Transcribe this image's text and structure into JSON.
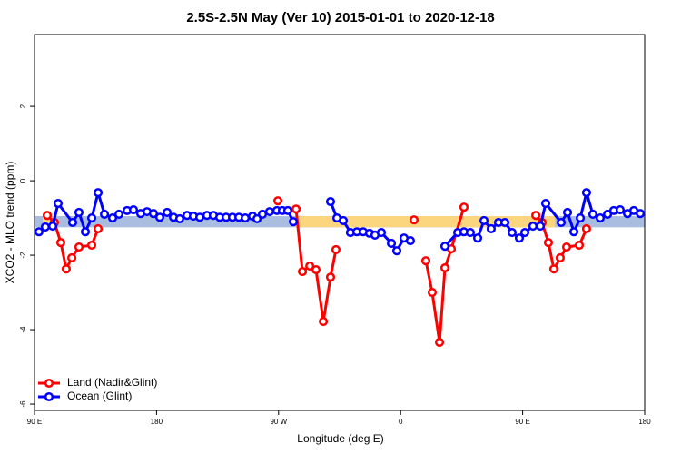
{
  "chart_data": {
    "type": "line",
    "title": "2.5S-2.5N May (Ver 10)   2015-01-01 to 2020-12-18",
    "x_label": "Longitude (deg E)",
    "y_label": "XCO2 - MLO trend (ppm)",
    "xlim": [
      90,
      540
    ],
    "ylim": [
      -6.17,
      3.93
    ],
    "xticks": [
      {
        "value": 90,
        "label": "90 E"
      },
      180,
      {
        "value": 270,
        "label": "90 W"
      },
      {
        "value": 360,
        "label": "0"
      },
      {
        "value": 450,
        "label": "90 E"
      },
      {
        "value": 540,
        "label": "180"
      }
    ],
    "yticks": [
      -6,
      -4,
      -2,
      0,
      2
    ],
    "legend": "bottom left",
    "bands": [
      {
        "color": "#a8bde0",
        "x": [
          90,
          540
        ],
        "y": [
          -1.25,
          -0.95
        ]
      },
      {
        "color": "#fcd67e",
        "x": [
          282,
          474
        ],
        "y": [
          -1.25,
          -0.95
        ]
      },
      {
        "color": "#fcd67e",
        "x": [
          96,
          103
        ],
        "y": [
          -1.25,
          -0.95
        ]
      }
    ],
    "series": [
      {
        "name": "Land (Nadir&Glint)",
        "color": "#ff0000",
        "x": [
          99.4,
          104.7,
          109.4,
          113.4,
          117.5,
          122.8,
          132.2,
          136.9,
          null,
          269.5,
          null,
          282.9,
          287.6,
          293.0,
          297.6,
          303.0,
          308.3,
          312.3,
          null,
          369.9,
          null,
          378.6,
          383.3,
          388.7,
          392.7,
          397.4,
          406.7,
          null,
          459.7,
          464.3,
          469.0,
          473.0,
          477.7,
          482.4,
          491.8,
          497.1
        ],
        "values": [
          -0.93,
          -1.12,
          -1.66,
          -2.37,
          -2.07,
          -1.78,
          -1.73,
          -1.29,
          null,
          -0.54,
          null,
          -0.76,
          -2.44,
          -2.29,
          -2.39,
          -3.78,
          -2.59,
          -1.85,
          null,
          -1.05,
          null,
          -2.15,
          -3.0,
          -4.34,
          -2.34,
          -1.83,
          -0.71,
          null,
          -0.93,
          -1.12,
          -1.66,
          -2.37,
          -2.07,
          -1.78,
          -1.73,
          -1.29
        ]
      },
      {
        "name": "Ocean (Glint)",
        "color": "#0000ff",
        "x": [
          93.3,
          98.0,
          103.4,
          107.4,
          118.1,
          122.8,
          127.5,
          132.2,
          136.9,
          141.6,
          147.6,
          152.3,
          158.3,
          163.0,
          168.3,
          173.0,
          177.7,
          182.4,
          187.8,
          192.5,
          197.1,
          202.5,
          207.2,
          211.9,
          217.2,
          221.9,
          226.6,
          231.3,
          236.0,
          240.7,
          245.4,
          250.8,
          254.1,
          258.1,
          263.4,
          268.8,
          272.8,
          276.8,
          280.9,
          null,
          308.3,
          313.0,
          317.7,
          323.0,
          327.7,
          332.4,
          337.1,
          341.1,
          345.8,
          353.2,
          357.2,
          362.5,
          367.2,
          null,
          392.7,
          402.1,
          406.7,
          411.4,
          416.8,
          421.5,
          426.8,
          432.2,
          436.9,
          442.2,
          447.6,
          451.6,
          457.6,
          463.0,
          467.0,
          478.4,
          483.1,
          487.8,
          492.5,
          497.1,
          501.8,
          507.2,
          512.6,
          517.2,
          521.9,
          527.3,
          532.0,
          536.7
        ],
        "values": [
          -1.37,
          -1.24,
          -1.22,
          -0.61,
          -1.12,
          -0.85,
          -1.37,
          -1.0,
          -0.32,
          -0.9,
          -1.0,
          -0.9,
          -0.8,
          -0.78,
          -0.88,
          -0.83,
          -0.88,
          -0.98,
          -0.85,
          -0.98,
          -1.02,
          -0.93,
          -0.95,
          -0.98,
          -0.93,
          -0.93,
          -0.98,
          -0.98,
          -0.98,
          -0.98,
          -1.0,
          -0.95,
          -1.02,
          -0.9,
          -0.83,
          -0.8,
          -0.8,
          -0.8,
          -1.1,
          null,
          -0.56,
          -1.0,
          -1.07,
          -1.39,
          -1.37,
          -1.37,
          -1.41,
          -1.46,
          -1.39,
          -1.68,
          -1.88,
          -1.54,
          -1.61,
          null,
          -1.76,
          -1.39,
          -1.37,
          -1.39,
          -1.54,
          -1.07,
          -1.29,
          -1.12,
          -1.12,
          -1.39,
          -1.54,
          -1.39,
          -1.22,
          -1.22,
          -0.61,
          -1.12,
          -0.85,
          -1.37,
          -1.0,
          -0.32,
          -0.9,
          -1.0,
          -0.9,
          -0.8,
          -0.78,
          -0.88,
          -0.8,
          -0.88
        ]
      }
    ]
  }
}
